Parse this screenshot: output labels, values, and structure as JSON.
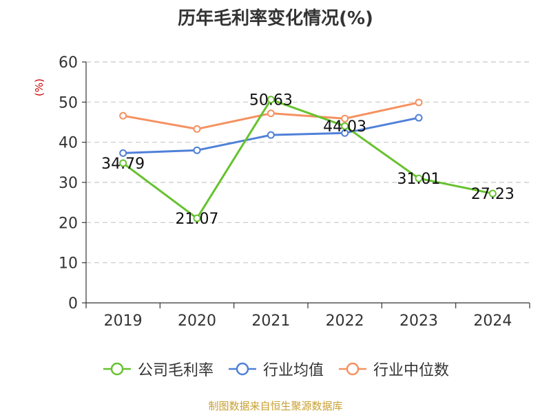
{
  "chart_data": {
    "type": "line",
    "title": "历年毛利率变化情况(%)",
    "y_unit": "(%)",
    "x": [
      "2019",
      "2020",
      "2021",
      "2022",
      "2023",
      "2024"
    ],
    "ylim": [
      0,
      60
    ],
    "yticks": [
      "0",
      "10",
      "20",
      "30",
      "40",
      "50",
      "60"
    ],
    "grid": true,
    "legend_position": "bottom",
    "series": [
      {
        "name": "公司毛利率",
        "color": "#66c22e",
        "values": [
          34.79,
          21.07,
          50.63,
          44.03,
          31.01,
          27.23
        ],
        "labels": [
          "34.79",
          "21.07",
          "50.63",
          "44.03",
          "31.01",
          "27.23"
        ]
      },
      {
        "name": "行业均值",
        "color": "#4f80d8",
        "values": [
          37.3,
          38.0,
          41.8,
          42.3,
          46.1,
          null
        ]
      },
      {
        "name": "行业中位数",
        "color": "#f59160",
        "values": [
          46.6,
          43.3,
          47.2,
          45.9,
          49.9,
          null
        ]
      }
    ]
  },
  "source_text": "制图数据来自恒生聚源数据库"
}
